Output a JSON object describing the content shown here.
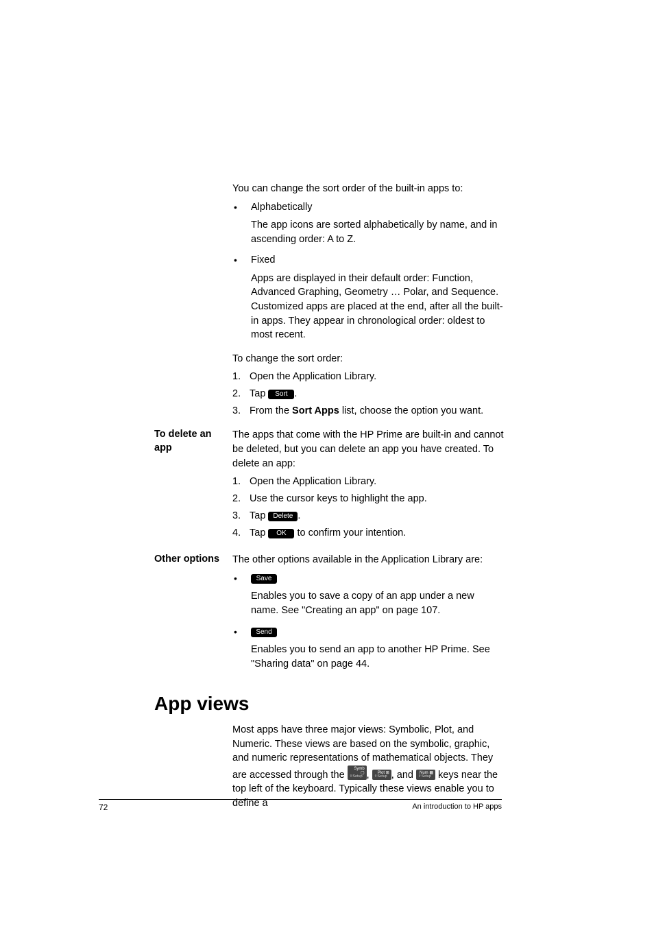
{
  "intro_line": "You can change the sort order of the built-in apps to:",
  "sort_opts": {
    "a_label": "Alphabetically",
    "a_desc": "The app icons are sorted alphabetically by name, and in ascending order: A to Z.",
    "f_label": "Fixed",
    "f_desc": "Apps are displayed in their default order: Function, Advanced Graphing, Geometry … Polar, and Sequence. Customized apps are placed at the end, after all the built-in apps. They appear in chronological order: oldest to most recent."
  },
  "change_lead": "To change the sort order:",
  "change_steps": {
    "s1": "Open the Application Library.",
    "s2_pre": "Tap ",
    "s2_key": "Sort",
    "s2_post": ".",
    "s3_pre": "From the ",
    "s3_bold": "Sort Apps",
    "s3_post": " list, choose the option you want."
  },
  "delete": {
    "head": "To delete an app",
    "lead": "The apps that come with the HP Prime are built-in and cannot be deleted, but you can delete an app you have created. To delete an app:",
    "s1": "Open the Application Library.",
    "s2": "Use the cursor keys to highlight the app.",
    "s3_pre": "Tap ",
    "s3_key": "Delete",
    "s3_post": ".",
    "s4_pre": "Tap ",
    "s4_key": "OK",
    "s4_post": " to confirm your intention."
  },
  "other": {
    "head": "Other options",
    "lead": "The other options available in the Application Library are:",
    "save_key": "Save",
    "save_desc": "Enables you to save a copy of an app under a new name. See \"Creating an app\" on page 107.",
    "send_key": "Send",
    "send_desc": "Enables you to send an app to another HP Prime. See \"Sharing data\" on page 44."
  },
  "appviews": {
    "title": "App views",
    "body_pre": "Most apps have three major views: Symbolic, Plot, and Numeric. These views are based on the symbolic, graphic, and numeric representations of mathematical objects. They are accessed through the ",
    "k1_top": "Symb ▢",
    "k1_bot": "⇧Setup",
    "mid1": ", ",
    "k2_top": "Plot ⊞",
    "k2_bot": "⇧Setup",
    "mid2": ", and ",
    "k3_top": "Num ▦",
    "k3_bot": "⇧Setup",
    "body_post": " keys near the top left of the keyboard. Typically these views enable you to define a"
  },
  "footer": {
    "page": "72",
    "title": "An introduction to HP apps"
  }
}
